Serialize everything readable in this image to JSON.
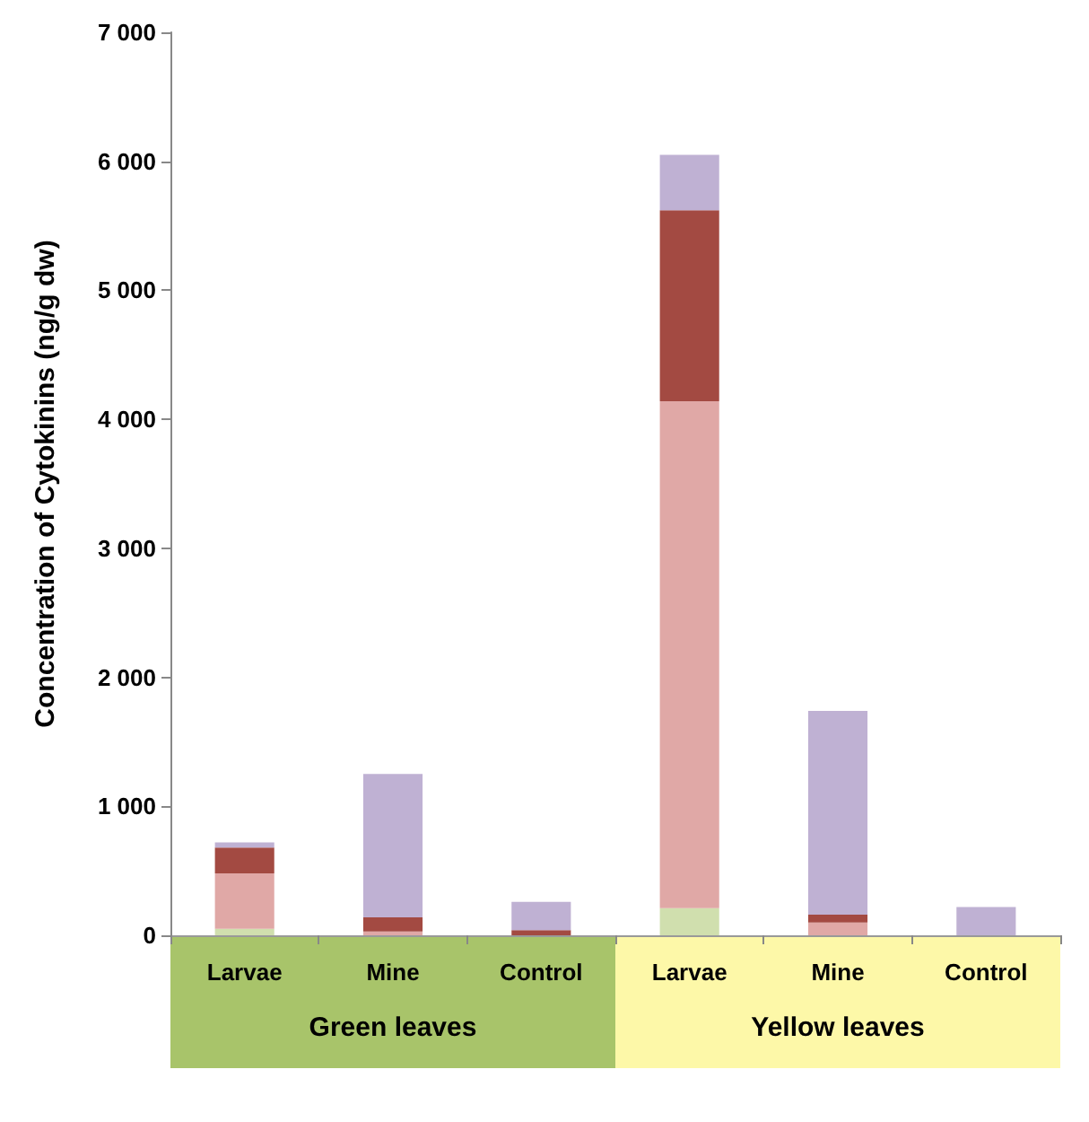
{
  "chart_data": {
    "type": "bar",
    "stacked": true,
    "ylabel": "Concentration of Cytokinins (ng/g dw)",
    "categories": [
      "Larvae",
      "Mine",
      "Control",
      "Larvae",
      "Mine",
      "Control"
    ],
    "annotations": [
      "Green leaves",
      "Yellow leaves"
    ],
    "series": [
      {
        "color": "#d0dfae",
        "values": [
          50,
          0,
          0,
          210,
          0,
          0
        ]
      },
      {
        "color": "#e0a8a6",
        "values": [
          430,
          30,
          null,
          3930,
          100,
          0
        ]
      },
      {
        "color": "#a34a42",
        "values": [
          200,
          110,
          40,
          1480,
          60,
          0
        ]
      },
      {
        "color": "#bfb1d3",
        "values": [
          40,
          1110,
          220,
          430,
          1580,
          220
        ]
      }
    ],
    "ylim": [
      0,
      7000
    ],
    "yticks": [
      0,
      {
        "value": 1000,
        "label": "1 000"
      },
      {
        "value": 2000,
        "label": "2 000"
      },
      {
        "value": 3000,
        "label": "3 000"
      },
      {
        "value": 4000,
        "label": "4 000"
      },
      {
        "value": 5000,
        "label": "5 000"
      },
      {
        "value": 6000,
        "label": "6 000"
      },
      {
        "value": 7000,
        "label": "7 000"
      }
    ],
    "grid": false
  }
}
